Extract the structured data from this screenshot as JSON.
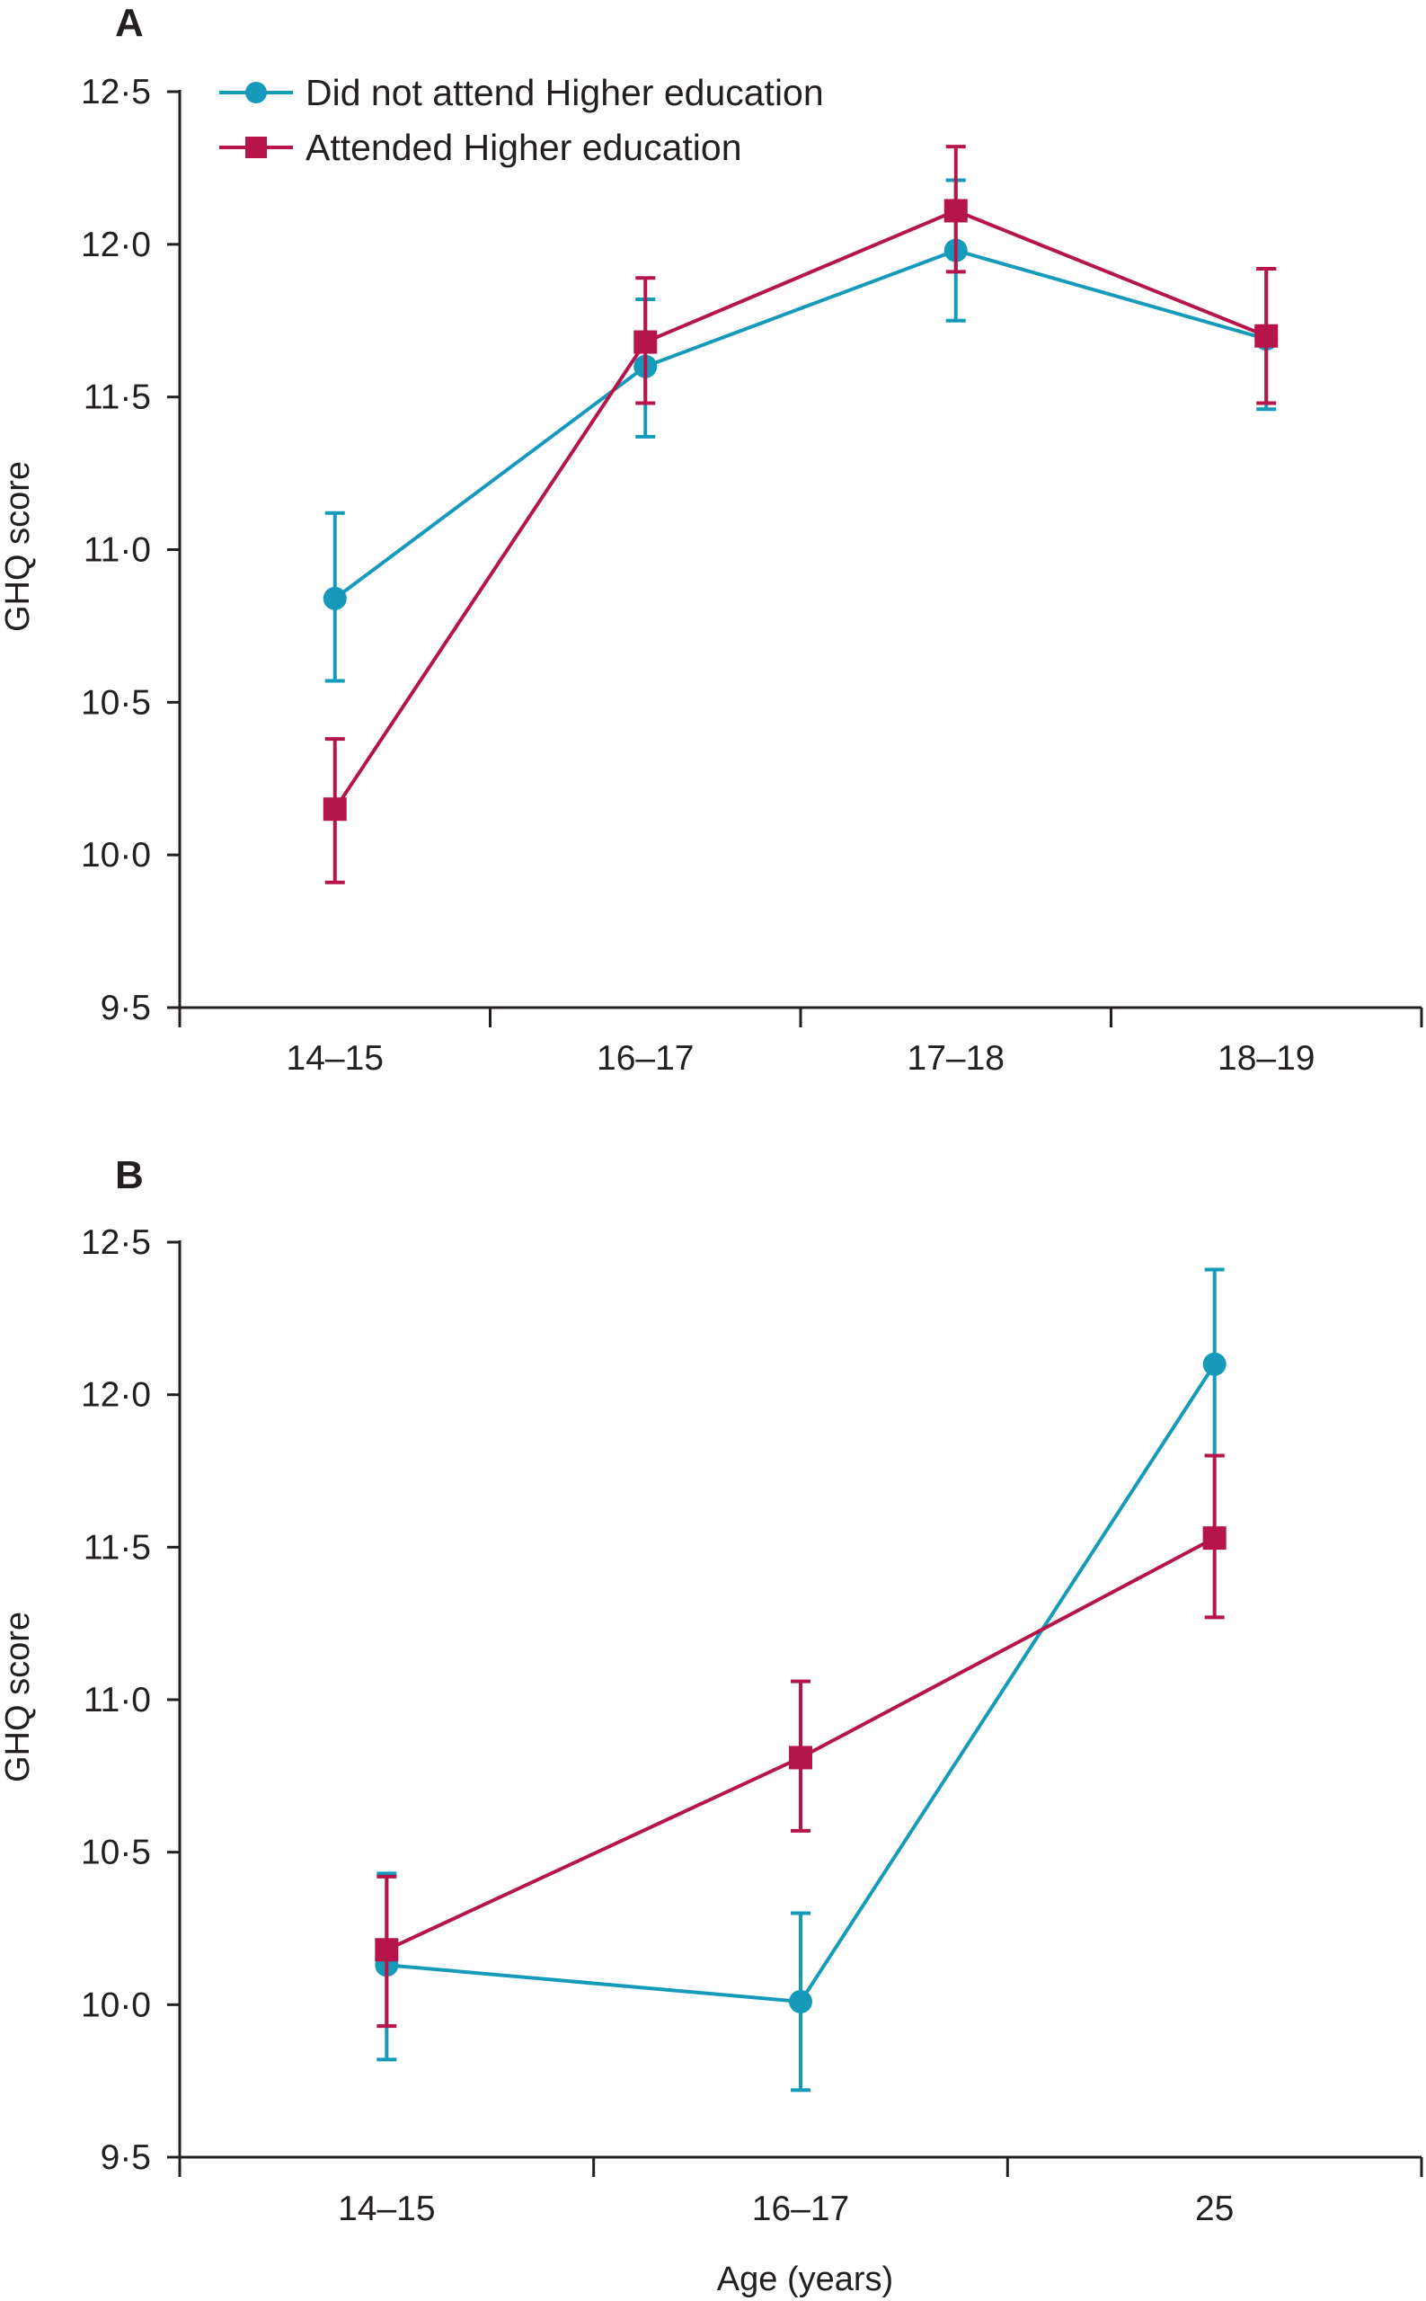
{
  "colors": {
    "series_a": "#159bb9",
    "series_b": "#b5154b",
    "axis": "#231f20"
  },
  "legend": [
    {
      "label": "Did not attend Higher education",
      "marker": "circle",
      "color": "#159bb9"
    },
    {
      "label": "Attended Higher education",
      "marker": "square",
      "color": "#b5154b"
    }
  ],
  "chart_data": [
    {
      "panel": "A",
      "type": "line",
      "ylabel": "GHQ score",
      "xlabel": "",
      "ylim": [
        9.5,
        12.5
      ],
      "yticks": [
        "9·5",
        "10·0",
        "10·5",
        "11·0",
        "11·5",
        "12·0",
        "12·5"
      ],
      "categories": [
        "14–15",
        "16–17",
        "17–18",
        "18–19"
      ],
      "legend_position": "top-left",
      "grid": false,
      "series": [
        {
          "name": "Did not attend Higher education",
          "marker": "circle",
          "color": "#159bb9",
          "values": [
            10.84,
            11.6,
            11.98,
            11.69
          ],
          "lower": [
            10.57,
            11.37,
            11.75,
            11.46
          ],
          "upper": [
            11.12,
            11.82,
            12.21,
            11.92
          ]
        },
        {
          "name": "Attended Higher education",
          "marker": "square",
          "color": "#b5154b",
          "values": [
            10.15,
            11.68,
            12.11,
            11.7
          ],
          "lower": [
            9.91,
            11.48,
            11.91,
            11.48
          ],
          "upper": [
            10.38,
            11.89,
            12.32,
            11.92
          ]
        }
      ]
    },
    {
      "panel": "B",
      "type": "line",
      "ylabel": "GHQ score",
      "xlabel": "Age (years)",
      "ylim": [
        9.5,
        12.5
      ],
      "yticks": [
        "9·5",
        "10·0",
        "10·5",
        "11·0",
        "11·5",
        "12·0",
        "12·5"
      ],
      "categories": [
        "14–15",
        "16–17",
        "25"
      ],
      "grid": false,
      "series": [
        {
          "name": "Did not attend Higher education",
          "marker": "circle",
          "color": "#159bb9",
          "values": [
            10.13,
            10.01,
            12.1
          ],
          "lower": [
            9.82,
            9.72,
            11.8
          ],
          "upper": [
            10.43,
            10.3,
            12.41
          ]
        },
        {
          "name": "Attended Higher education",
          "marker": "square",
          "color": "#b5154b",
          "values": [
            10.18,
            10.81,
            11.53
          ],
          "lower": [
            9.93,
            10.57,
            11.27
          ],
          "upper": [
            10.42,
            11.06,
            11.8
          ]
        }
      ]
    }
  ]
}
